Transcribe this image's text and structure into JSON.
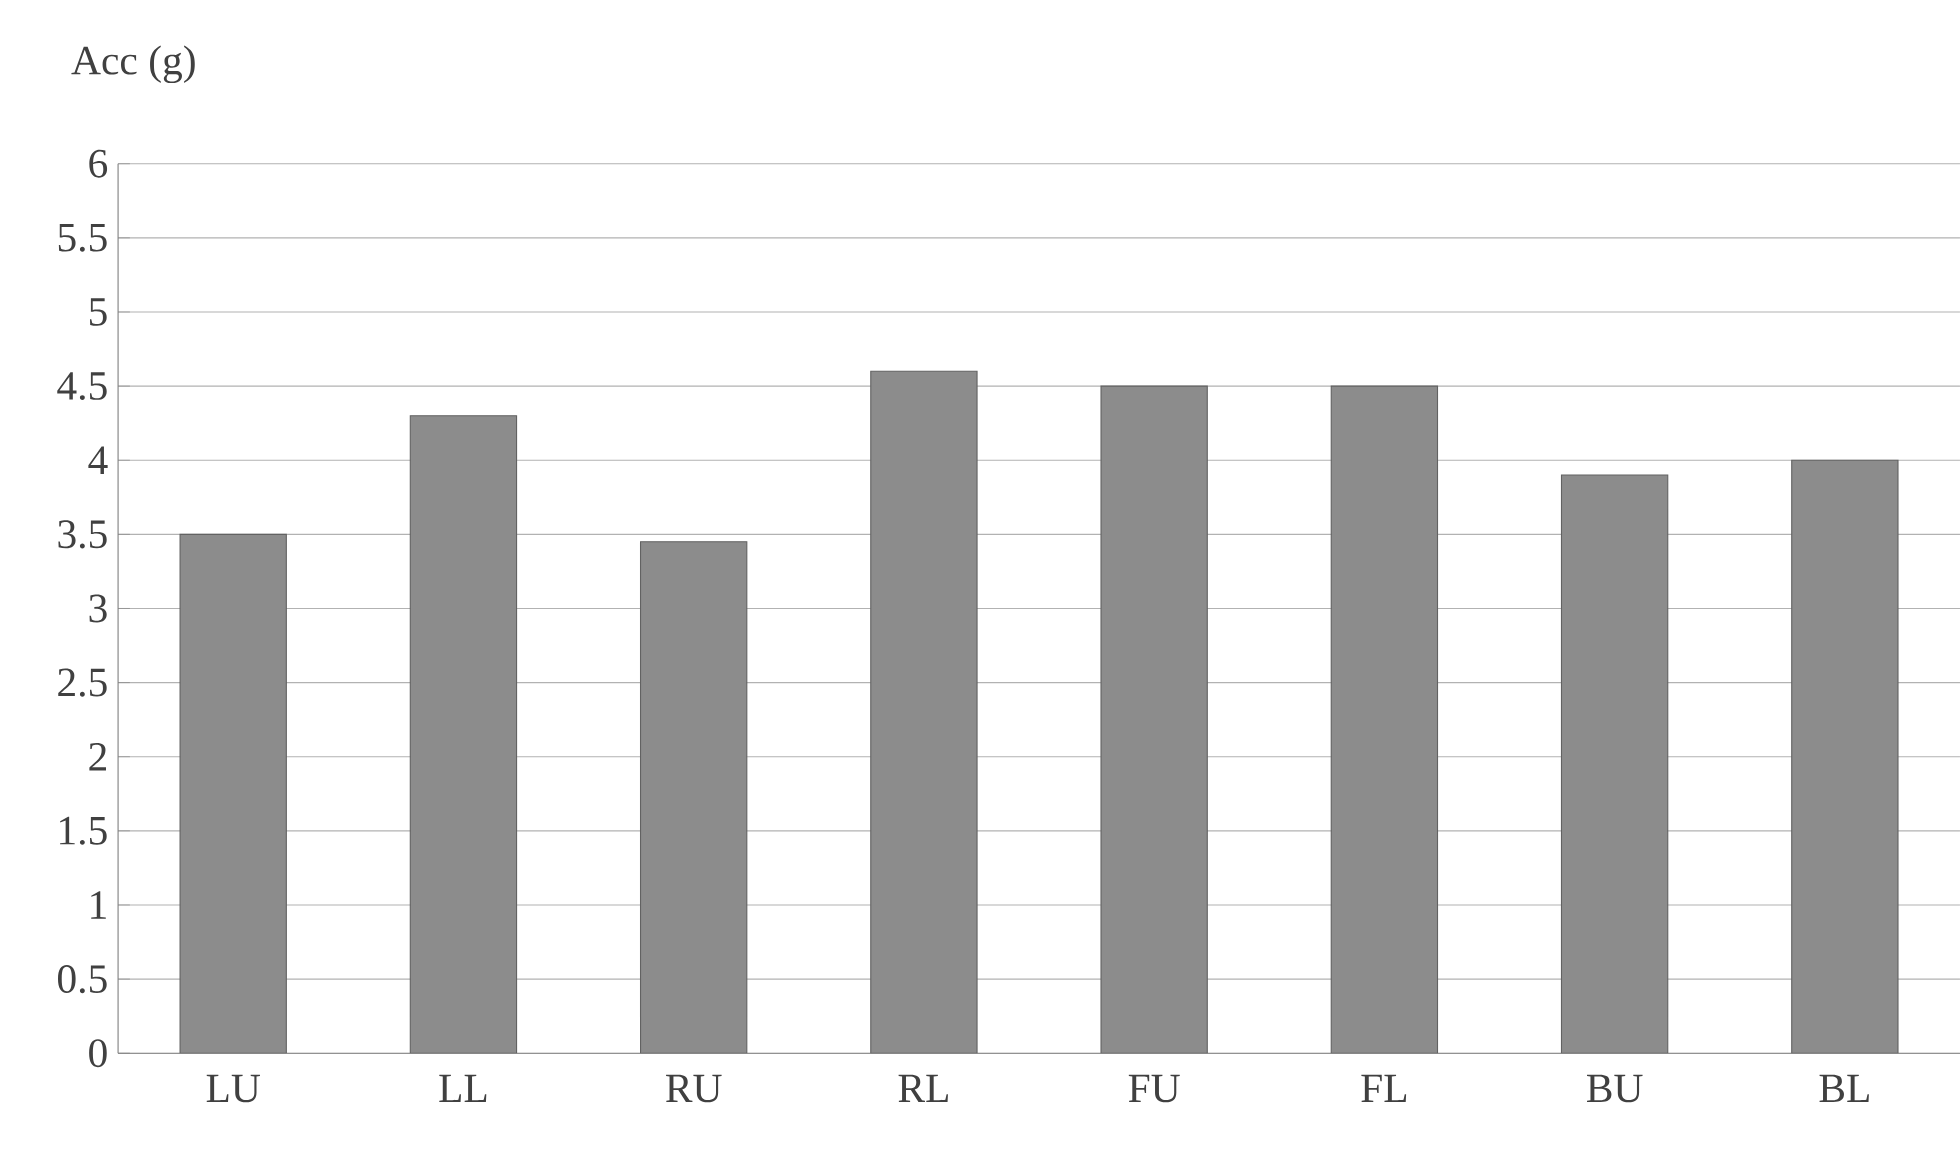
{
  "chart_data": {
    "type": "bar",
    "ylabel": "Acc (g)",
    "categories": [
      "LU",
      "LL",
      "RU",
      "RL",
      "FU",
      "FL",
      "BU",
      "BL"
    ],
    "values": [
      3.5,
      4.3,
      3.45,
      4.6,
      4.5,
      4.5,
      3.9,
      4.0
    ],
    "color": "#8c8c8c",
    "ylim": [
      0,
      6
    ],
    "yticks": [
      0,
      0.5,
      1,
      1.5,
      2,
      2.5,
      3,
      3.5,
      4,
      4.5,
      5,
      5.5,
      6
    ],
    "grid": "y"
  }
}
